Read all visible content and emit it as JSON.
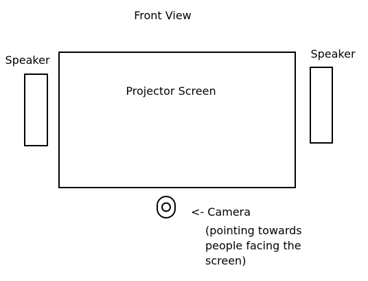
{
  "diagram": {
    "title": "Front View",
    "screen_label": "Projector Screen",
    "speaker_left_label": "Speaker",
    "speaker_right_label": "Speaker",
    "camera_label": "<- Camera",
    "camera_note": [
      "(pointing towards",
      "people facing the",
      "screen)"
    ]
  },
  "colors": {
    "stroke": "#000000",
    "background": "#ffffff"
  },
  "icons": {
    "camera": "camera-lens-icon"
  }
}
